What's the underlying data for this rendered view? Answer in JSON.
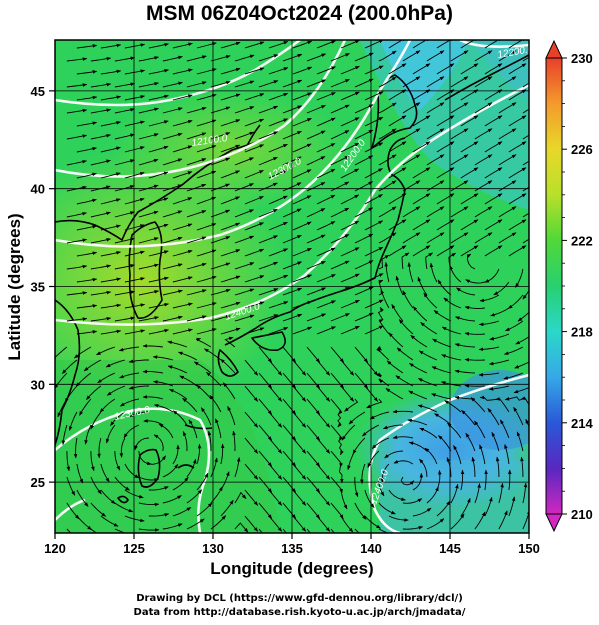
{
  "title": "MSM 06Z04Oct2024 (200.0hPa)",
  "map": {
    "xlabel": "Longitude (degrees)",
    "ylabel": "Latitude  (degrees)",
    "x_ticks": [
      "120",
      "125",
      "130",
      "135",
      "140",
      "145",
      "150"
    ],
    "y_ticks": [
      "25",
      "30",
      "35",
      "40",
      "45"
    ],
    "lon_range": [
      120,
      150
    ],
    "lat_range": [
      22.4,
      47.6
    ],
    "contour_labels": [
      "12100.0",
      "12400.0",
      "12300.0",
      "12200.0",
      "12200.0",
      "12300.0",
      "12400.0"
    ]
  },
  "colorbar": {
    "ticks": [
      "230",
      "226",
      "222",
      "218",
      "214",
      "210"
    ],
    "min": 210,
    "max": 230
  },
  "footer": {
    "line1": "Drawing by DCL (https://www.gfd-dennou.org/library/dcl/)",
    "line2": "Data from http://database.rish.kyoto-u.ac.jp/arch/jmadata/"
  }
}
